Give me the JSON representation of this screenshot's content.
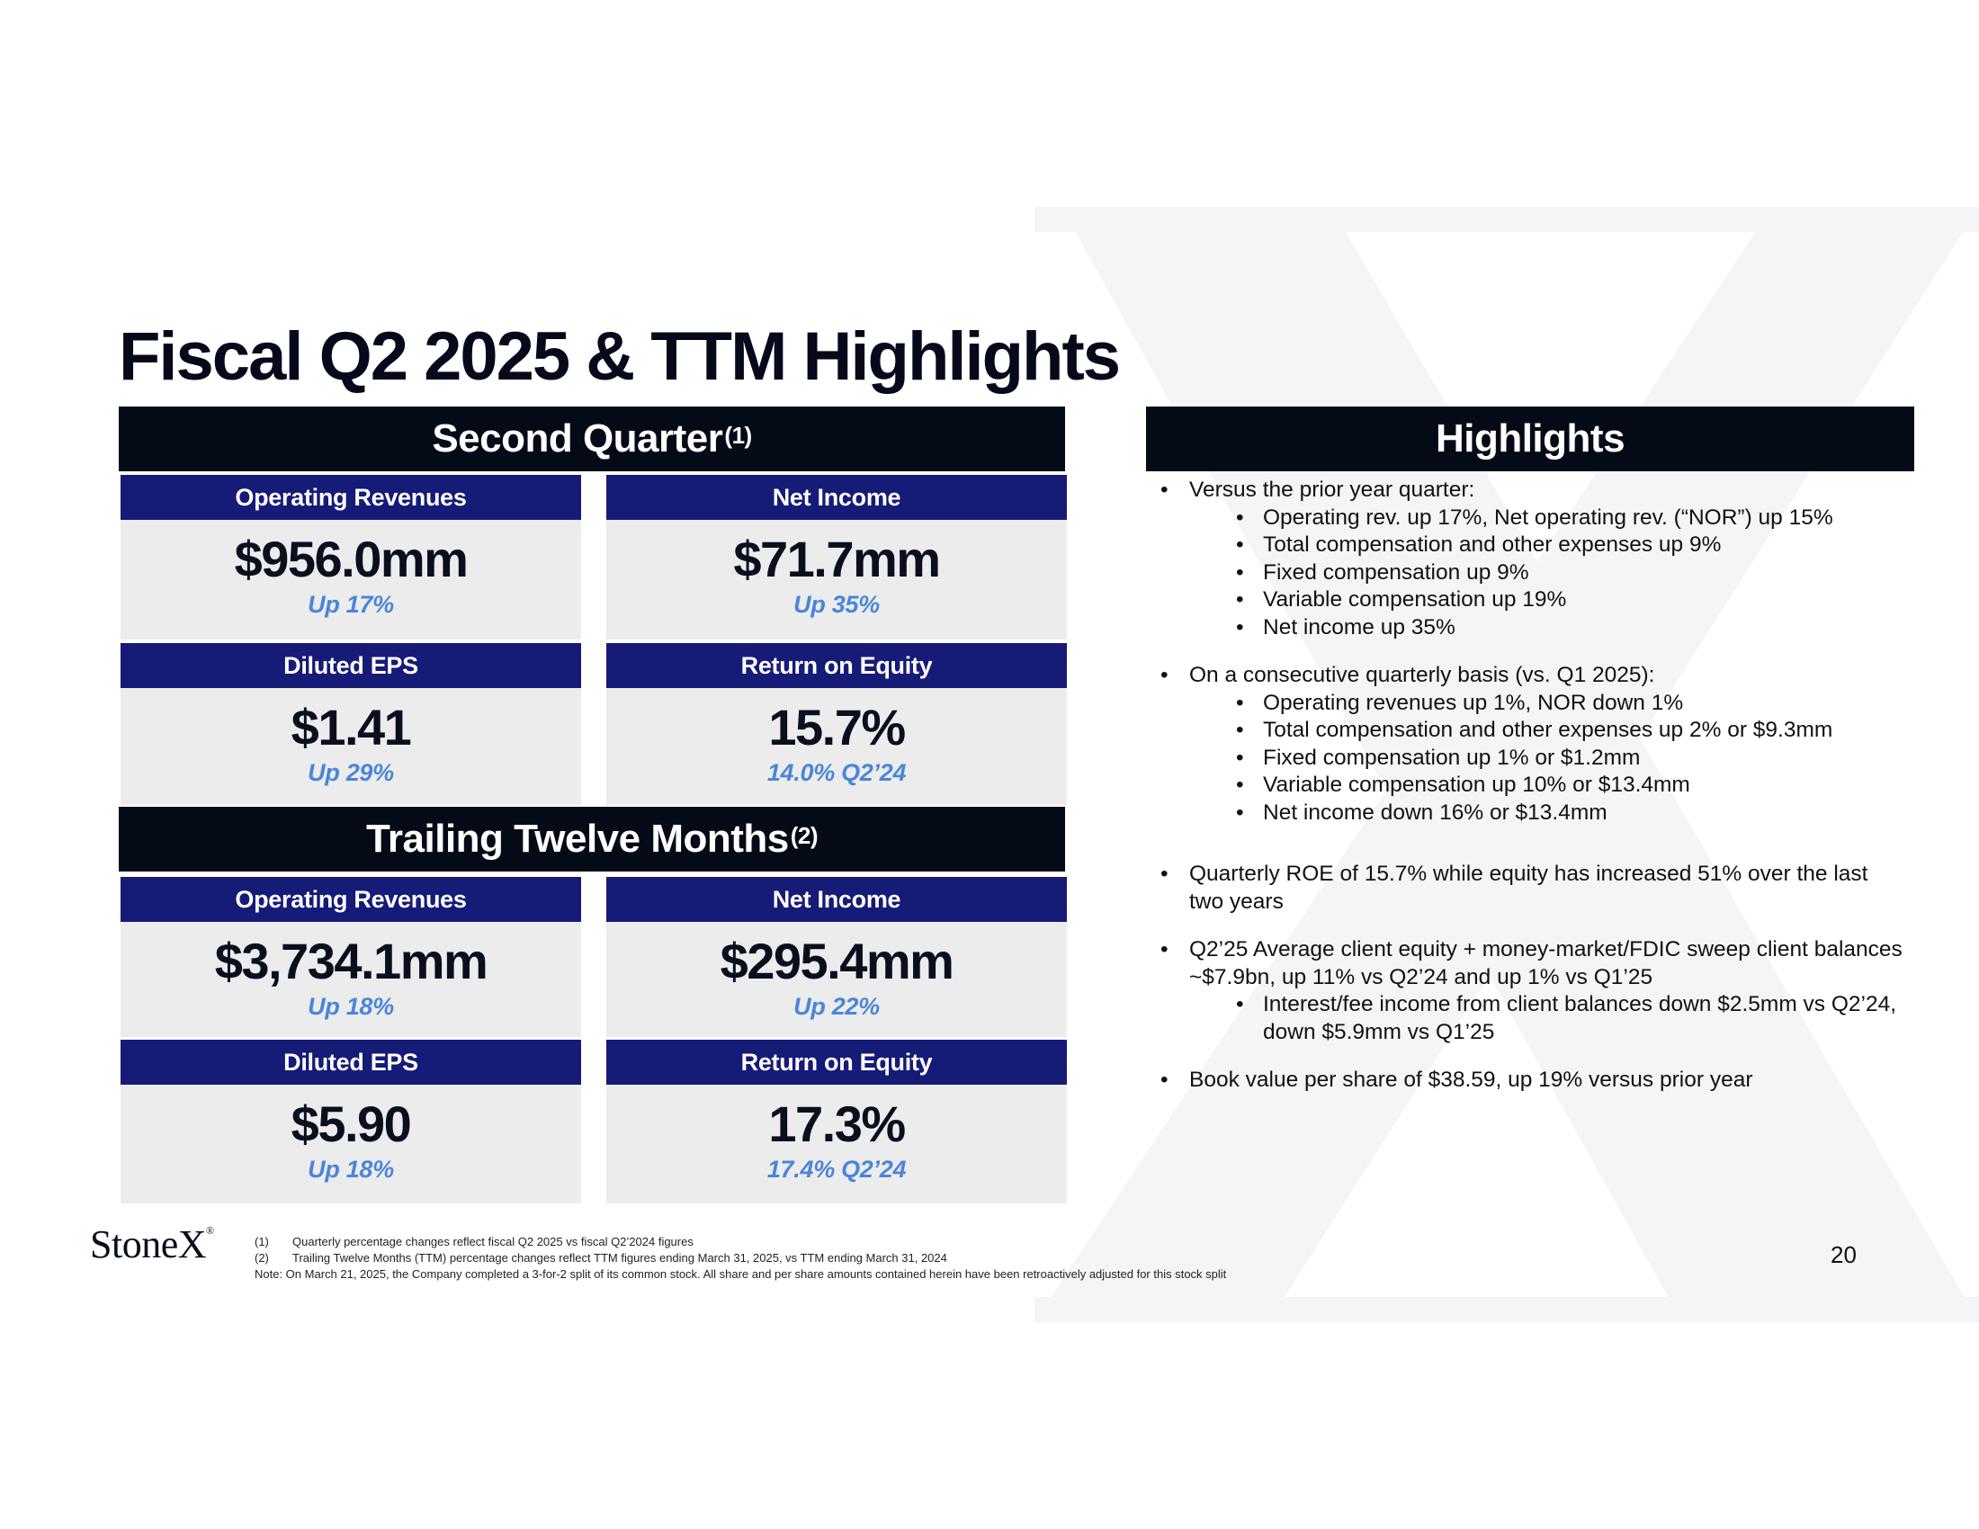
{
  "title": "Fiscal Q2 2025 & TTM Highlights",
  "second_quarter": {
    "label": "Second Quarter",
    "note": "(1)",
    "cards": [
      {
        "header": "Operating Revenues",
        "value": "$956.0mm",
        "change": "Up 17%"
      },
      {
        "header": "Net Income",
        "value": "$71.7mm",
        "change": "Up 35%"
      },
      {
        "header": "Diluted EPS",
        "value": "$1.41",
        "change": "Up 29%"
      },
      {
        "header": "Return on Equity",
        "value": "15.7%",
        "change": "14.0% Q2’24"
      }
    ]
  },
  "ttm": {
    "label": "Trailing Twelve Months",
    "note": "(2)",
    "cards": [
      {
        "header": "Operating Revenues",
        "value": "$3,734.1mm",
        "change": "Up 18%"
      },
      {
        "header": "Net Income",
        "value": "$295.4mm",
        "change": "Up 22%"
      },
      {
        "header": "Diluted EPS",
        "value": "$5.90",
        "change": "Up 18%"
      },
      {
        "header": "Return on Equity",
        "value": "17.3%",
        "change": "17.4% Q2’24"
      }
    ]
  },
  "highlights": {
    "label": "Highlights",
    "b1": {
      "text": "Versus the prior year quarter:",
      "subs": [
        "Operating rev. up 17%, Net operating rev. (“NOR”) up 15%",
        "Total compensation and other expenses up 9%",
        "Fixed compensation up 9%",
        "Variable compensation up 19%",
        "Net income up 35%"
      ]
    },
    "b2": {
      "text": "On a consecutive quarterly basis (vs. Q1 2025):",
      "subs": [
        "Operating revenues up 1%, NOR down 1%",
        "Total compensation and other expenses up 2% or $9.3mm",
        "Fixed compensation up 1% or $1.2mm",
        "Variable compensation up 10% or $13.4mm",
        "Net income down 16% or $13.4mm"
      ]
    },
    "b3": {
      "text": "Quarterly ROE of 15.7% while equity has increased 51% over the last two years"
    },
    "b4": {
      "text": "Q2’25 Average client equity + money-market/FDIC sweep client balances ~$7.9bn, up 11% vs Q2’24 and up 1% vs Q1’25",
      "subs": [
        "Interest/fee income from client balances down $2.5mm vs Q2’24, down $5.9mm vs Q1’25"
      ]
    },
    "b5": {
      "text": "Book value per share of $38.59, up 19% versus prior year"
    }
  },
  "logo": {
    "text": "StoneX",
    "mark": "®"
  },
  "footnotes": {
    "f1_num": "(1)",
    "f1_text": "Quarterly percentage changes reflect fiscal Q2 2025 vs fiscal Q2’2024 figures",
    "f2_num": "(2)",
    "f2_text": "Trailing Twelve Months (TTM)  percentage changes reflect TTM figures ending March 31, 2025, vs TTM ending March 31, 2024",
    "note": "Note: On March 21, 2025, the Company completed a 3-for-2 split of its common stock. All share and per share amounts contained herein have been retroactively adjusted for this stock split"
  },
  "page_number": "20",
  "colors": {
    "band": "#050b16",
    "card_header": "#161b78",
    "card_bg": "#ececed",
    "change": "#4a86d8",
    "watermark": "#f3f4f6"
  }
}
